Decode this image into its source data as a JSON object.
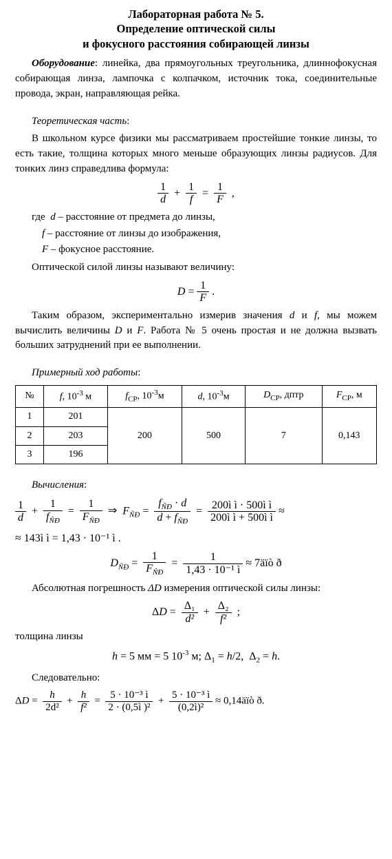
{
  "title_line1": "Лабораторная работа № 5.",
  "title_line2": "Определение оптической силы",
  "title_line3": "и фокусного расстояния собирающей линзы",
  "equipment_label": "Оборудование",
  "equipment_text": ": линейка, два прямоугольных треугольника, длиннофокусная собирающая линза, лампочка с колпачком, источник тока, соединительные провода, экран, направляющая рейка.",
  "theory_label": "Теоретическая часть",
  "theory_para1": "В школьном курсе физики мы рассматриваем простейшие тонкие линзы, то есть такие, толщина которых много меньше образующих линзы радиусов. Для тонких линз справедлива формула:",
  "definitions_intro": "где",
  "defs": {
    "d_var": "d",
    "d_text": " – расстояние от предмета до линзы,",
    "f_var": "f",
    "f_text": " – расстояние от линзы до изображения,",
    "F_var": "F",
    "F_text": " – фокусное расстояние."
  },
  "optical_power_line": "Оптической силой линзы называют величину:",
  "conclusion_para_a": "Таким образом, экспериментально измерив значения ",
  "conclusion_d": "d",
  "conclusion_and": " и ",
  "conclusion_f": "f",
  "conclusion_para_b": ", мы можем вычислить величины ",
  "conclusion_D": "D",
  "conclusion_F": "F",
  "conclusion_para_c": ". Работа № 5 очень простая и не должна вызвать больших затруднений при ее выполнении.",
  "work_label": "Примерный ход работы",
  "table": {
    "headers": {
      "n": "№",
      "f": "f, 10⁻³ м",
      "fcp": "f_СР, 10⁻³м",
      "d": "d, 10⁻³м",
      "Dcp": "D_СР, дптр",
      "Fcp": "F_СР, м"
    },
    "rows": [
      {
        "n": "1",
        "f": "201"
      },
      {
        "n": "2",
        "f": "203"
      },
      {
        "n": "3",
        "f": "196"
      }
    ],
    "merged": {
      "fcp": "200",
      "d": "500",
      "Dcp": "7",
      "Fcp": "0,143"
    }
  },
  "calc_label": "Вычисления",
  "formula1_num1": "1",
  "formula1_den_d": "d",
  "formula1_den_fND": "f_ÑÐ",
  "formula1_den_FND": "F_ÑÐ",
  "formula1_FND": "F_ÑÐ",
  "formula1_fnd_d": "f_ÑÐ · d",
  "formula1_d_plus": "d + f_ÑÐ",
  "formula1_right_num": "200ì ì  · 500ì ì",
  "formula1_right_den": "200ì ì  + 500ì ì",
  "formula1_approx": " ≈",
  "formula1_result": "≈ 143ì ì  = 1,43 · 10⁻¹ ì  .",
  "formula2_lhs": "D_ÑÐ",
  "formula2_one": "1",
  "formula2_FND": "F_ÑÐ",
  "formula2_den": "1,43 · 10⁻¹ ì",
  "formula2_result": " ≈ 7äïò ð",
  "abs_err_para_a": "Абсолютная погрешность ",
  "abs_err_dD": "ΔD",
  "abs_err_para_b": " измерения оптической силы линзы:",
  "delta_formula_num1": "Δ₁",
  "delta_formula_den1": "d²",
  "delta_formula_num2": "Δ₂",
  "delta_formula_den2": "f²",
  "thickness_label": "толщина линзы",
  "thickness_formula": "h = 5 мм = 5 10⁻³ м; Δ₁ = h/2,  Δ₂ = h.",
  "therefore_label": "Следовательно:",
  "final_num1": "h",
  "final_den1": "2d²",
  "final_num2": "h",
  "final_den2": "f²",
  "final_num3": "5 · 10⁻³ ì",
  "final_den3": "2 · (0,5ì )²",
  "final_num4": "5 · 10⁻³ ì",
  "final_den4": "(0,2ì)²",
  "final_result": " ≈ 0,14äïò ð."
}
